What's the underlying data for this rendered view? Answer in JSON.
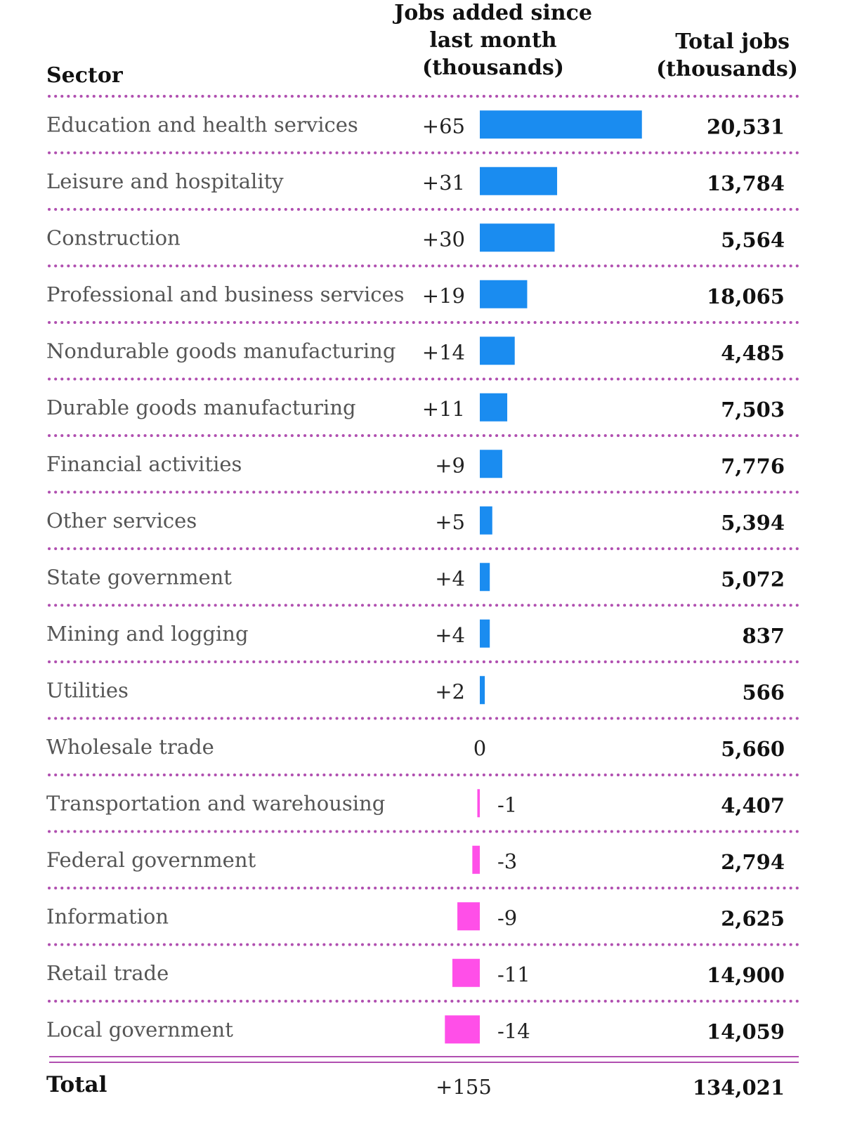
{
  "chart_data": {
    "type": "table",
    "headers": {
      "sector": "Sector",
      "change_lines": [
        "Jobs added since",
        "last month",
        "(thousands)"
      ],
      "total_lines": [
        "Total jobs",
        "(thousands)"
      ]
    },
    "rows": [
      {
        "sector": "Education and health services",
        "change": 65,
        "change_label": "+65",
        "total": "20,531"
      },
      {
        "sector": "Leisure and hospitality",
        "change": 31,
        "change_label": "+31",
        "total": "13,784"
      },
      {
        "sector": "Construction",
        "change": 30,
        "change_label": "+30",
        "total": "5,564"
      },
      {
        "sector": "Professional and business services",
        "change": 19,
        "change_label": "+19",
        "total": "18,065"
      },
      {
        "sector": "Nondurable goods manufacturing",
        "change": 14,
        "change_label": "+14",
        "total": "4,485"
      },
      {
        "sector": "Durable goods manufacturing",
        "change": 11,
        "change_label": "+11",
        "total": "7,503"
      },
      {
        "sector": "Financial activities",
        "change": 9,
        "change_label": "+9",
        "total": "7,776"
      },
      {
        "sector": "Other services",
        "change": 5,
        "change_label": "+5",
        "total": "5,394"
      },
      {
        "sector": "State government",
        "change": 4,
        "change_label": "+4",
        "total": "5,072"
      },
      {
        "sector": "Mining and logging",
        "change": 4,
        "change_label": "+4",
        "total": "837"
      },
      {
        "sector": "Utilities",
        "change": 2,
        "change_label": "+2",
        "total": "566"
      },
      {
        "sector": "Wholesale trade",
        "change": 0,
        "change_label": "0",
        "total": "5,660"
      },
      {
        "sector": "Transportation and warehousing",
        "change": -1,
        "change_label": "-1",
        "total": "4,407"
      },
      {
        "sector": "Federal government",
        "change": -3,
        "change_label": "-3",
        "total": "2,794"
      },
      {
        "sector": "Information",
        "change": -9,
        "change_label": "-9",
        "total": "2,625"
      },
      {
        "sector": "Retail trade",
        "change": -11,
        "change_label": "-11",
        "total": "14,900"
      },
      {
        "sector": "Local government",
        "change": -14,
        "change_label": "-14",
        "total": "14,059"
      }
    ],
    "total_row": {
      "label": "Total",
      "change_label": "+155",
      "total": "134,021"
    },
    "colors": {
      "positive": "#1a8cf0",
      "negative": "#ff4fe8",
      "separator": "#b04fb0"
    }
  }
}
